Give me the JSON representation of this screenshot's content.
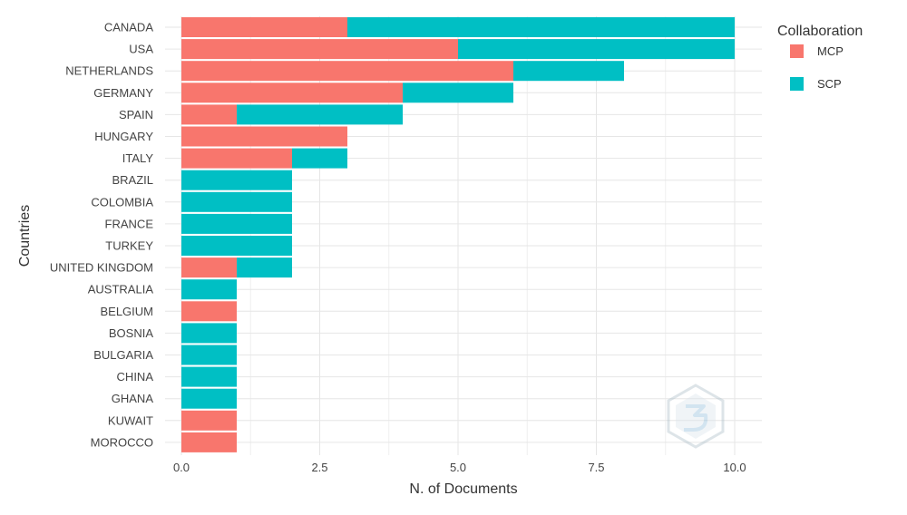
{
  "chart_data": {
    "type": "bar",
    "orientation": "horizontal",
    "stacked": true,
    "categories": [
      "CANADA",
      "USA",
      "NETHERLANDS",
      "GERMANY",
      "SPAIN",
      "HUNGARY",
      "ITALY",
      "BRAZIL",
      "COLOMBIA",
      "FRANCE",
      "TURKEY",
      "UNITED KINGDOM",
      "AUSTRALIA",
      "BELGIUM",
      "BOSNIA",
      "BULGARIA",
      "CHINA",
      "GHANA",
      "KUWAIT",
      "MOROCCO"
    ],
    "series": [
      {
        "name": "MCP",
        "color": "#F8766D",
        "values": [
          3,
          5,
          6,
          4,
          1,
          3,
          2,
          0,
          0,
          0,
          0,
          1,
          0,
          1,
          0,
          0,
          0,
          0,
          1,
          1
        ]
      },
      {
        "name": "SCP",
        "color": "#00BFC4",
        "values": [
          7,
          5,
          2,
          2,
          3,
          0,
          1,
          2,
          2,
          2,
          2,
          1,
          1,
          0,
          1,
          1,
          1,
          1,
          0,
          0
        ]
      }
    ],
    "title": "",
    "xlabel": "N. of Documents",
    "ylabel": "Countries",
    "xlim": [
      0,
      10
    ],
    "xticks": [
      "0.0",
      "2.5",
      "5.0",
      "7.5",
      "10.0"
    ],
    "grid": true,
    "legend": {
      "title": "Collaboration",
      "placement": "right"
    }
  }
}
